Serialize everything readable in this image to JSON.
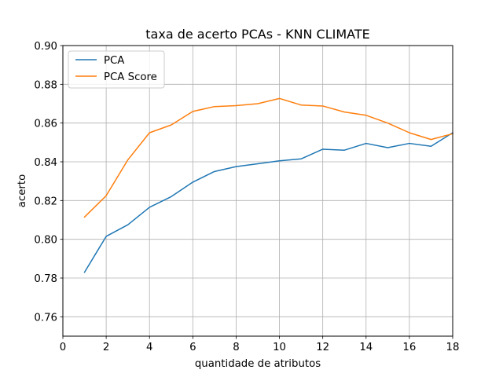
{
  "chart_data": {
    "type": "line",
    "title": "taxa de acerto PCAs - KNN CLIMATE",
    "xlabel": "quantidade de atributos",
    "ylabel": "acerto",
    "xlim": [
      0,
      18
    ],
    "ylim": [
      0.75,
      0.9
    ],
    "xticks": [
      "0",
      "2",
      "4",
      "6",
      "8",
      "10",
      "12",
      "14",
      "16",
      "18"
    ],
    "yticks": [
      "0.76",
      "0.78",
      "0.80",
      "0.82",
      "0.84",
      "0.86",
      "0.88",
      "0.90"
    ],
    "grid": true,
    "legend_position": "top-left",
    "x": [
      1,
      2,
      3,
      4,
      5,
      6,
      7,
      8,
      9,
      10,
      11,
      12,
      13,
      14,
      15,
      16,
      17,
      18
    ],
    "series": [
      {
        "name": "PCA",
        "color": "#1f77b4",
        "values": [
          0.783,
          0.8015,
          0.8075,
          0.8165,
          0.822,
          0.8295,
          0.835,
          0.8375,
          0.839,
          0.8405,
          0.8415,
          0.8465,
          0.846,
          0.8495,
          0.8473,
          0.8495,
          0.848,
          0.855
        ]
      },
      {
        "name": "PCA Score",
        "color": "#ff7f0e",
        "values": [
          0.8115,
          0.8225,
          0.841,
          0.855,
          0.859,
          0.866,
          0.8685,
          0.869,
          0.87,
          0.8727,
          0.8693,
          0.8688,
          0.8657,
          0.864,
          0.86,
          0.855,
          0.8515,
          0.8545
        ]
      }
    ]
  }
}
